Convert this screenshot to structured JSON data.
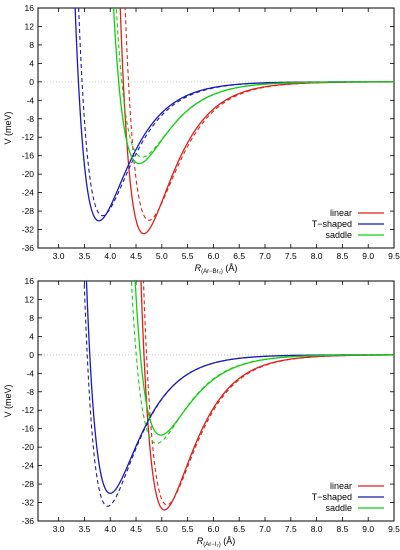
{
  "chart_data": [
    {
      "type": "line",
      "ylabel": "V (meV)",
      "xlabel_main": "R",
      "xlabel_sub": "(Ar−Br₂)",
      "xlabel_unit": " (Å)",
      "xlim": [
        2.6,
        9.5
      ],
      "ylim": [
        -36,
        16
      ],
      "xticks": [
        "3.0",
        "3.5",
        "4.0",
        "4.5",
        "5.0",
        "5.5",
        "6.0",
        "6.5",
        "7.0",
        "7.5",
        "8.0",
        "8.5",
        "9.0",
        "9.5"
      ],
      "yticks": [
        "16",
        "12",
        "8",
        "4",
        "0",
        "-4",
        "-8",
        "-12",
        "-16",
        "-20",
        "-24",
        "-28",
        "-32",
        "-36"
      ],
      "legend_position": "bottom-right",
      "series": [
        {
          "name": "linear",
          "color": "#e0201b",
          "De": 32.9,
          "Re": 4.65,
          "De_dash": 30.0,
          "Re_dash": 4.75
        },
        {
          "name": "T−shaped",
          "color": "#1a1ab8",
          "De": 30.1,
          "Re": 3.78,
          "De_dash": 29.0,
          "Re_dash": 3.85
        },
        {
          "name": "saddle",
          "color": "#10d010",
          "De": 17.7,
          "Re": 4.56,
          "De_dash": 16.3,
          "Re_dash": 4.62
        }
      ]
    },
    {
      "type": "line",
      "ylabel": "V (meV)",
      "xlabel_main": "R",
      "xlabel_sub": "(Ar−I₂)",
      "xlabel_unit": " (Å)",
      "xlim": [
        2.6,
        9.5
      ],
      "ylim": [
        -36,
        16
      ],
      "xticks": [
        "3.0",
        "3.5",
        "4.0",
        "4.5",
        "5.0",
        "5.5",
        "6.0",
        "6.5",
        "7.0",
        "7.5",
        "8.0",
        "8.5",
        "9.0",
        "9.5"
      ],
      "yticks": [
        "16",
        "12",
        "8",
        "4",
        "0",
        "-4",
        "-8",
        "-12",
        "-16",
        "-20",
        "-24",
        "-28",
        "-32",
        "-36"
      ],
      "legend_position": "bottom-right",
      "series": [
        {
          "name": "linear",
          "color": "#e0201b",
          "De": 33.6,
          "Re": 5.05,
          "De_dash": 32.5,
          "Re_dash": 5.1
        },
        {
          "name": "T−shaped",
          "color": "#1a1ab8",
          "De": 30.0,
          "Re": 4.0,
          "De_dash": 32.8,
          "Re_dash": 3.95
        },
        {
          "name": "saddle",
          "color": "#10d010",
          "De": 17.4,
          "Re": 4.98,
          "De_dash": 19.2,
          "Re_dash": 4.9
        }
      ]
    }
  ]
}
